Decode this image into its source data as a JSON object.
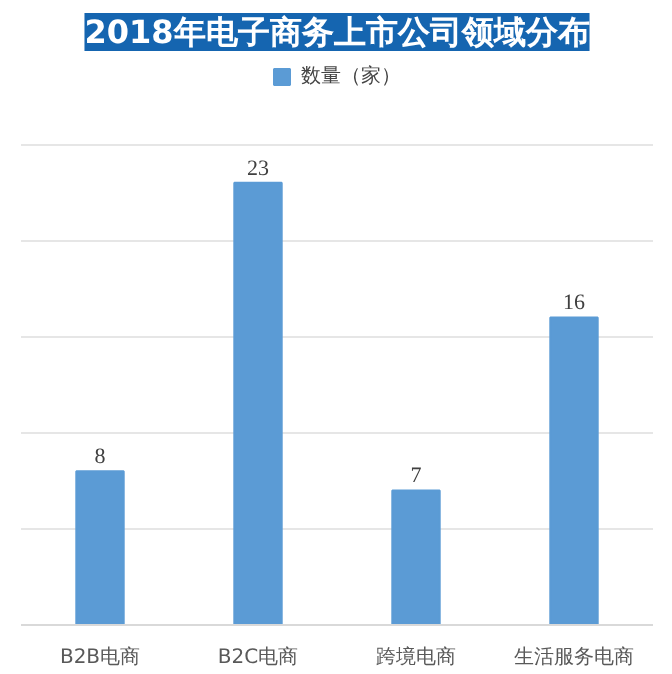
{
  "chart_data": {
    "type": "bar",
    "title": "2018年电子商务上市公司领域分布",
    "categories": [
      "B2B电商",
      "B2C电商",
      "跨境电商",
      "生活服务电商"
    ],
    "series": [
      {
        "name": "数量（家）",
        "color": "#5b9bd5",
        "values": [
          8,
          23,
          7,
          16
        ]
      }
    ],
    "data_labels": true,
    "grid": "y",
    "legend": "top",
    "tick_labels": "x"
  }
}
